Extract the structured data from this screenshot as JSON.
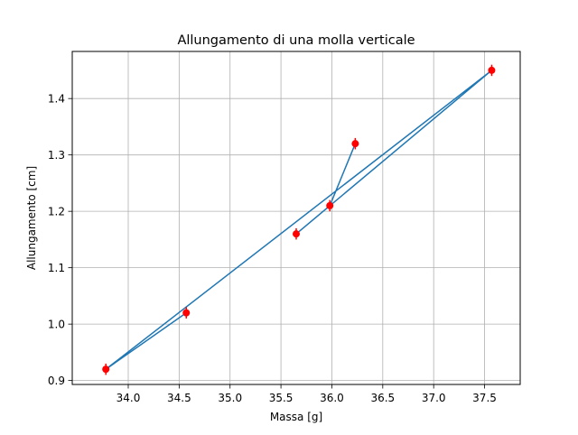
{
  "chart_data": {
    "type": "line",
    "title": "Allungamento di una molla verticale",
    "xlabel": "Massa [g]",
    "ylabel": "Allungamento [cm]",
    "xlim": [
      33.45,
      37.85
    ],
    "ylim": [
      0.893,
      1.4835
    ],
    "xticks": [
      34.0,
      34.5,
      35.0,
      35.5,
      36.0,
      36.5,
      37.0,
      37.5
    ],
    "yticks": [
      0.9,
      1.0,
      1.1,
      1.2,
      1.3,
      1.4
    ],
    "grid": true,
    "series": [
      {
        "x": [
          36.23,
          35.98,
          35.65,
          37.57,
          33.78,
          34.57
        ],
        "y": [
          1.32,
          1.21,
          1.16,
          1.45,
          0.92,
          1.02
        ],
        "line_color": "#1f77b4",
        "marker_color": "#ff0000",
        "x_err": 0.03,
        "y_err": 0.01
      }
    ]
  }
}
